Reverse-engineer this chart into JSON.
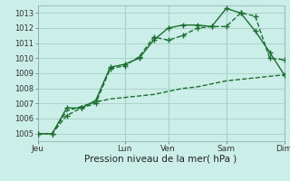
{
  "title": "Pression niveau de la mer( hPa )",
  "background_color": "#cceee8",
  "plot_bg_color": "#cceee8",
  "grid_color": "#aad4cc",
  "line_color": "#1a6e2e",
  "ylim": [
    1004.5,
    1013.5
  ],
  "yticks": [
    1005,
    1006,
    1007,
    1008,
    1009,
    1010,
    1011,
    1012,
    1013
  ],
  "xtick_labels": [
    "Jeu",
    "",
    "Lun",
    "Ven",
    "",
    "Sam",
    "",
    "Dim"
  ],
  "xtick_positions": [
    0,
    3,
    6,
    9,
    11,
    13,
    15,
    17
  ],
  "vline_positions": [
    0,
    6,
    9,
    13,
    17
  ],
  "total_points": 18,
  "series1": [
    1005.0,
    1005.0,
    1006.2,
    1006.7,
    1007.0,
    1009.3,
    1009.5,
    1010.1,
    1011.4,
    1011.2,
    1011.5,
    1012.0,
    1012.1,
    1012.1,
    1013.0,
    1012.8,
    1010.0,
    1009.9
  ],
  "series2": [
    1005.0,
    1005.0,
    1006.7,
    1006.7,
    1007.2,
    1009.4,
    1009.6,
    1010.0,
    1011.2,
    1012.0,
    1012.2,
    1012.2,
    1012.1,
    1013.3,
    1013.0,
    1011.8,
    1010.4,
    1008.9
  ],
  "series3": [
    1005.0,
    1005.0,
    1006.5,
    1006.8,
    1007.1,
    1007.3,
    1007.4,
    1007.5,
    1007.6,
    1007.8,
    1008.0,
    1008.1,
    1008.3,
    1008.5,
    1008.6,
    1008.7,
    1008.8,
    1008.9
  ],
  "marker": "+",
  "markersize": 4,
  "linewidth": 1.0,
  "xlabel_fontsize": 7.5,
  "ytick_fontsize": 6,
  "xtick_fontsize": 6.5
}
